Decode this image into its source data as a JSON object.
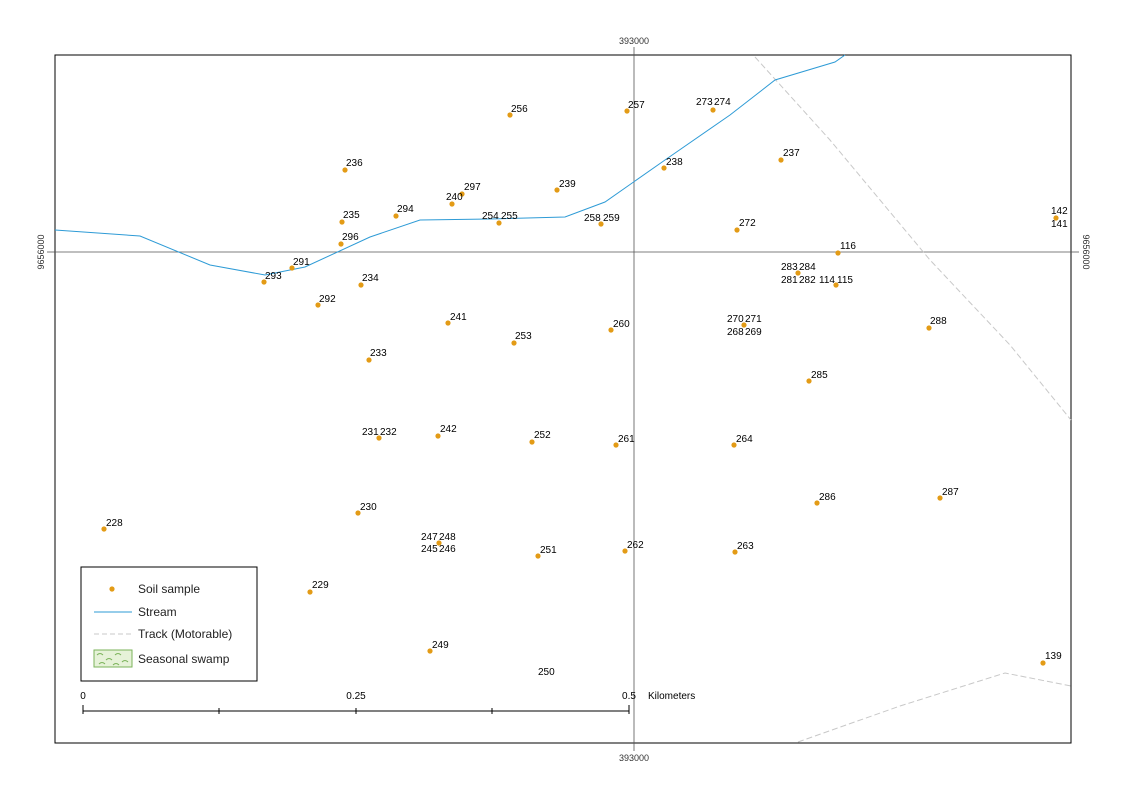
{
  "colors": {
    "sample": "#e39b16",
    "stream": "#2e9bd6",
    "track": "#c8c8c8",
    "frame": "#000000",
    "grid": "#555555",
    "swamp_fill": "#e6f2d8",
    "swamp_mark": "#7bb35a"
  },
  "grid_labels": {
    "easting_top": "393000",
    "easting_bottom": "393000",
    "northing_left": "9656000",
    "northing_right": "9656000"
  },
  "legend": {
    "items": [
      {
        "label": "Soil sample",
        "symbol": "dot"
      },
      {
        "label": "Stream",
        "symbol": "line"
      },
      {
        "label": "Track (Motorable)",
        "symbol": "dash"
      },
      {
        "label": "Seasonal swamp",
        "symbol": "swamp"
      }
    ]
  },
  "scale_bar": {
    "ticks": [
      "0",
      "0.25",
      "0.5"
    ],
    "unit": "Kilometers"
  },
  "samples": [
    "256",
    "257",
    "273",
    "274",
    "237",
    "238",
    "236",
    "239",
    "297",
    "240",
    "294",
    "235",
    "254",
    "255",
    "258",
    "259",
    "272",
    "142",
    "141",
    "296",
    "116",
    "291",
    "293",
    "283",
    "284",
    "281",
    "282",
    "114",
    "115",
    "234",
    "292",
    "241",
    "270",
    "271",
    "268",
    "269",
    "288",
    "260",
    "253",
    "233",
    "285",
    "231",
    "232",
    "242",
    "252",
    "261",
    "264",
    "286",
    "287",
    "228",
    "230",
    "247",
    "248",
    "245",
    "246",
    "251",
    "262",
    "263",
    "229",
    "249",
    "250",
    "139"
  ]
}
